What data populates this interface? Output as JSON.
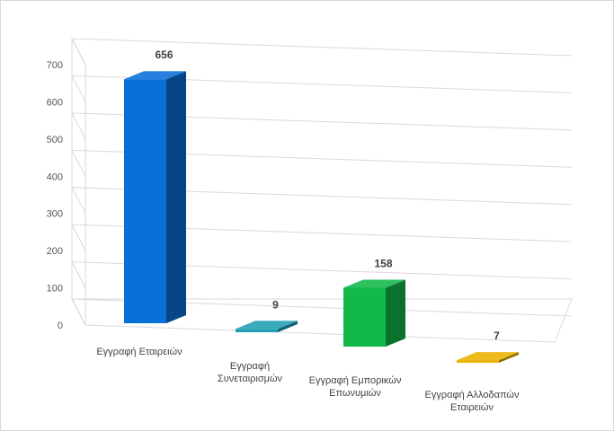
{
  "chart_data": {
    "type": "bar",
    "title": "",
    "xlabel": "",
    "ylabel": "",
    "ylim": [
      0,
      700
    ],
    "yticks": [
      "0",
      "100",
      "200",
      "300",
      "400",
      "500",
      "600",
      "700"
    ],
    "grid": true,
    "legend": "none",
    "categories": [
      [
        "Εγγραφή Εταιρειών"
      ],
      [
        "Εγγραφή",
        "Συνεταιρισμών"
      ],
      [
        "Εγγραφή Εμπορικών",
        "Επωνυμιών"
      ],
      [
        "Εγγραφή Αλλοδαπών",
        "Εταιρειών"
      ]
    ],
    "values": [
      656,
      9,
      158,
      7
    ],
    "data_labels": [
      "656",
      "9",
      "158",
      "7"
    ],
    "colors": [
      "#0a6fd8",
      "#1e9fb4",
      "#12b84a",
      "#e9b300"
    ]
  }
}
